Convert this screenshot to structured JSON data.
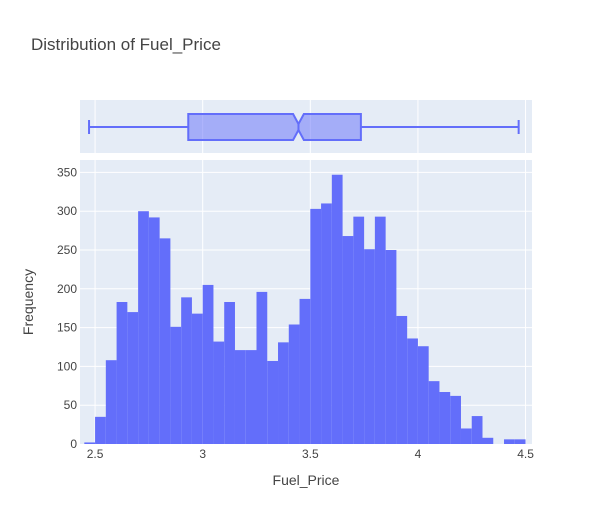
{
  "chart_data": {
    "type": "histogram",
    "title": "Distribution of Fuel_Price",
    "xlabel": "Fuel_Price",
    "ylabel": "Frequency",
    "xlim": [
      2.43,
      4.53
    ],
    "ylim": [
      0,
      366
    ],
    "x_ticks": [
      2.5,
      3,
      3.5,
      4,
      4.5
    ],
    "x_tick_labels": [
      "2.5",
      "3",
      "3.5",
      "4",
      "4.5"
    ],
    "y_ticks": [
      0,
      50,
      100,
      150,
      200,
      250,
      300,
      350
    ],
    "y_tick_labels": [
      "0",
      "50",
      "100",
      "150",
      "200",
      "250",
      "300",
      "350"
    ],
    "bin_width": 0.05,
    "bins_start": 2.45,
    "counts": [
      2,
      35,
      108,
      183,
      170,
      300,
      292,
      265,
      151,
      189,
      168,
      205,
      132,
      183,
      121,
      121,
      196,
      107,
      131,
      154,
      187,
      303,
      310,
      347,
      268,
      293,
      251,
      293,
      250,
      165,
      136,
      126,
      81,
      67,
      62,
      20,
      36,
      8,
      0,
      6,
      6
    ],
    "bar_color": "#636efa",
    "box": {
      "min": 2.472,
      "q1": 2.933,
      "median": 3.445,
      "q3": 3.735,
      "max": 4.468,
      "notch_low": 3.42,
      "notch_high": 3.47,
      "color": "#636efa",
      "fill": "rgba(99,110,250,0.5)"
    }
  }
}
